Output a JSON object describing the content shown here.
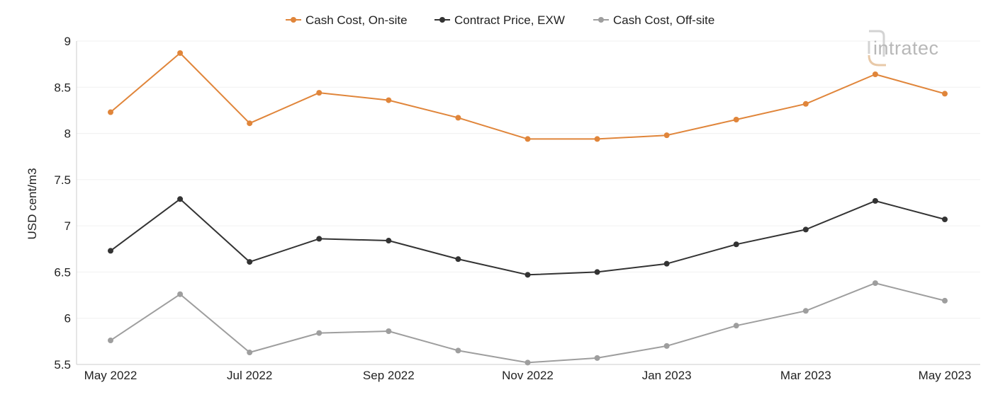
{
  "logo": {
    "text": "intratec",
    "color": "#b8b8b8",
    "accent_color": "#e8c9a8"
  },
  "chart_data": {
    "type": "line",
    "title": "",
    "xlabel": "",
    "ylabel": "USD cent/m3",
    "x": [
      "May 2022",
      "Jun 2022",
      "Jul 2022",
      "Aug 2022",
      "Sep 2022",
      "Oct 2022",
      "Nov 2022",
      "Dec 2022",
      "Jan 2023",
      "Feb 2023",
      "Mar 2023",
      "Apr 2023",
      "May 2023"
    ],
    "x_tick_labels": [
      "May 2022",
      "Jul 2022",
      "Sep 2022",
      "Nov 2022",
      "Jan 2023",
      "Mar 2023",
      "May 2023"
    ],
    "y_tick_labels": [
      "5.5",
      "6",
      "6.5",
      "7",
      "7.5",
      "8",
      "8.5",
      "9"
    ],
    "ylim": [
      5.5,
      9
    ],
    "grid": true,
    "legend_position": "top-center",
    "series": [
      {
        "name": "Cash Cost, On-site",
        "color": "#e0853a",
        "values": [
          8.23,
          8.87,
          8.11,
          8.44,
          8.36,
          8.17,
          7.94,
          7.94,
          7.98,
          8.15,
          8.32,
          8.64,
          8.43
        ]
      },
      {
        "name": "Contract Price, EXW",
        "color": "#333333",
        "values": [
          6.73,
          7.29,
          6.61,
          6.86,
          6.84,
          6.64,
          6.47,
          6.5,
          6.59,
          6.8,
          6.96,
          7.27,
          7.07
        ]
      },
      {
        "name": "Cash Cost, Off-site",
        "color": "#9e9e9e",
        "values": [
          5.76,
          6.26,
          5.63,
          5.84,
          5.86,
          5.65,
          5.52,
          5.57,
          5.7,
          5.92,
          6.08,
          6.38,
          6.19
        ]
      }
    ]
  }
}
